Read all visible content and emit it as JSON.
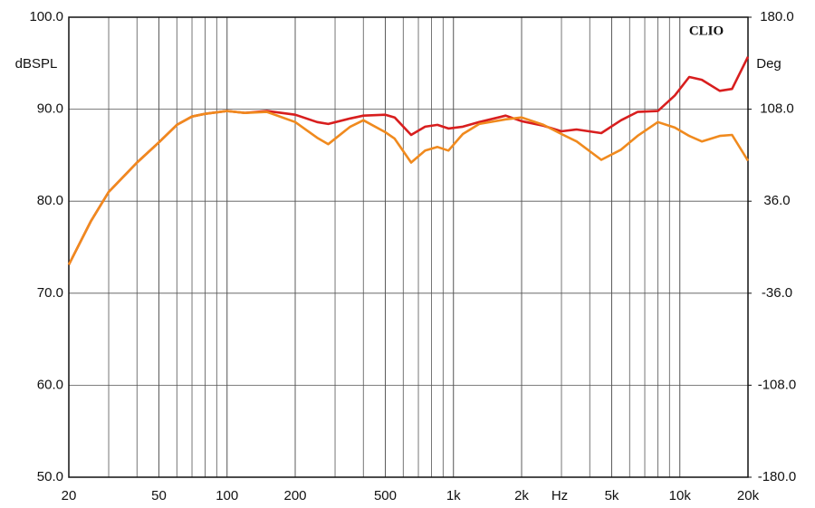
{
  "chart_data": {
    "type": "line",
    "annotation": "CLIO",
    "ylabel": "dBSPL",
    "y2label": "Deg",
    "xlabel": "Hz",
    "xscale": "log",
    "grid": true,
    "x": [
      20,
      25,
      30,
      40,
      50,
      60,
      70,
      80,
      100,
      120,
      150,
      200,
      250,
      280,
      350,
      400,
      500,
      550,
      650,
      750,
      850,
      950,
      1100,
      1300,
      1700,
      2000,
      2500,
      3000,
      3500,
      4500,
      5500,
      6500,
      8000,
      9500,
      11000,
      12500,
      15000,
      17000,
      20000
    ],
    "series": [
      {
        "color": "#d81e1e",
        "values": [
          73.1,
          77.8,
          81.0,
          84.2,
          86.4,
          88.3,
          89.2,
          89.5,
          89.8,
          89.6,
          89.8,
          89.4,
          88.6,
          88.4,
          89.0,
          89.3,
          89.4,
          89.1,
          87.2,
          88.1,
          88.3,
          87.9,
          88.1,
          88.6,
          89.3,
          88.7,
          88.2,
          87.6,
          87.8,
          87.4,
          88.8,
          89.7,
          89.8,
          91.5,
          93.5,
          93.2,
          92.0,
          92.2,
          95.7
        ]
      },
      {
        "color": "#f08a1e",
        "values": [
          73.1,
          77.8,
          81.0,
          84.2,
          86.4,
          88.3,
          89.2,
          89.5,
          89.8,
          89.6,
          89.7,
          88.6,
          86.9,
          86.2,
          88.1,
          88.8,
          87.5,
          86.8,
          84.2,
          85.5,
          85.9,
          85.5,
          87.3,
          88.4,
          88.9,
          89.1,
          88.3,
          87.3,
          86.5,
          84.5,
          85.6,
          87.1,
          88.6,
          88.0,
          87.1,
          86.5,
          87.1,
          87.2,
          84.4
        ]
      }
    ],
    "xlim": [
      20,
      20000
    ],
    "xticks": [
      20,
      50,
      100,
      200,
      500,
      {
        "value": 1000,
        "label": "1k"
      },
      {
        "value": 2000,
        "label": "2k"
      },
      {
        "value": 5000,
        "label": "5k"
      },
      {
        "value": 10000,
        "label": "10k"
      },
      {
        "value": 20000,
        "label": "20k"
      }
    ],
    "ylim": [
      50,
      100
    ],
    "yticks": [
      {
        "value": 50,
        "label": "50.0"
      },
      {
        "value": 60,
        "label": "60.0"
      },
      {
        "value": 70,
        "label": "70.0"
      },
      {
        "value": 80,
        "label": "80.0"
      },
      {
        "value": 90,
        "label": "90.0"
      },
      {
        "value": 100,
        "label": "100.0"
      }
    ],
    "y2lim": [
      -180,
      180
    ],
    "y2ticks": [
      {
        "value": -180,
        "label": "-180.0"
      },
      {
        "value": -108,
        "label": "-108.0"
      },
      {
        "value": -36,
        "label": "-36.0"
      },
      {
        "value": 36,
        "label": "36.0"
      },
      {
        "value": 108,
        "label": "108.0"
      },
      {
        "value": 180,
        "label": "180.0"
      }
    ]
  }
}
